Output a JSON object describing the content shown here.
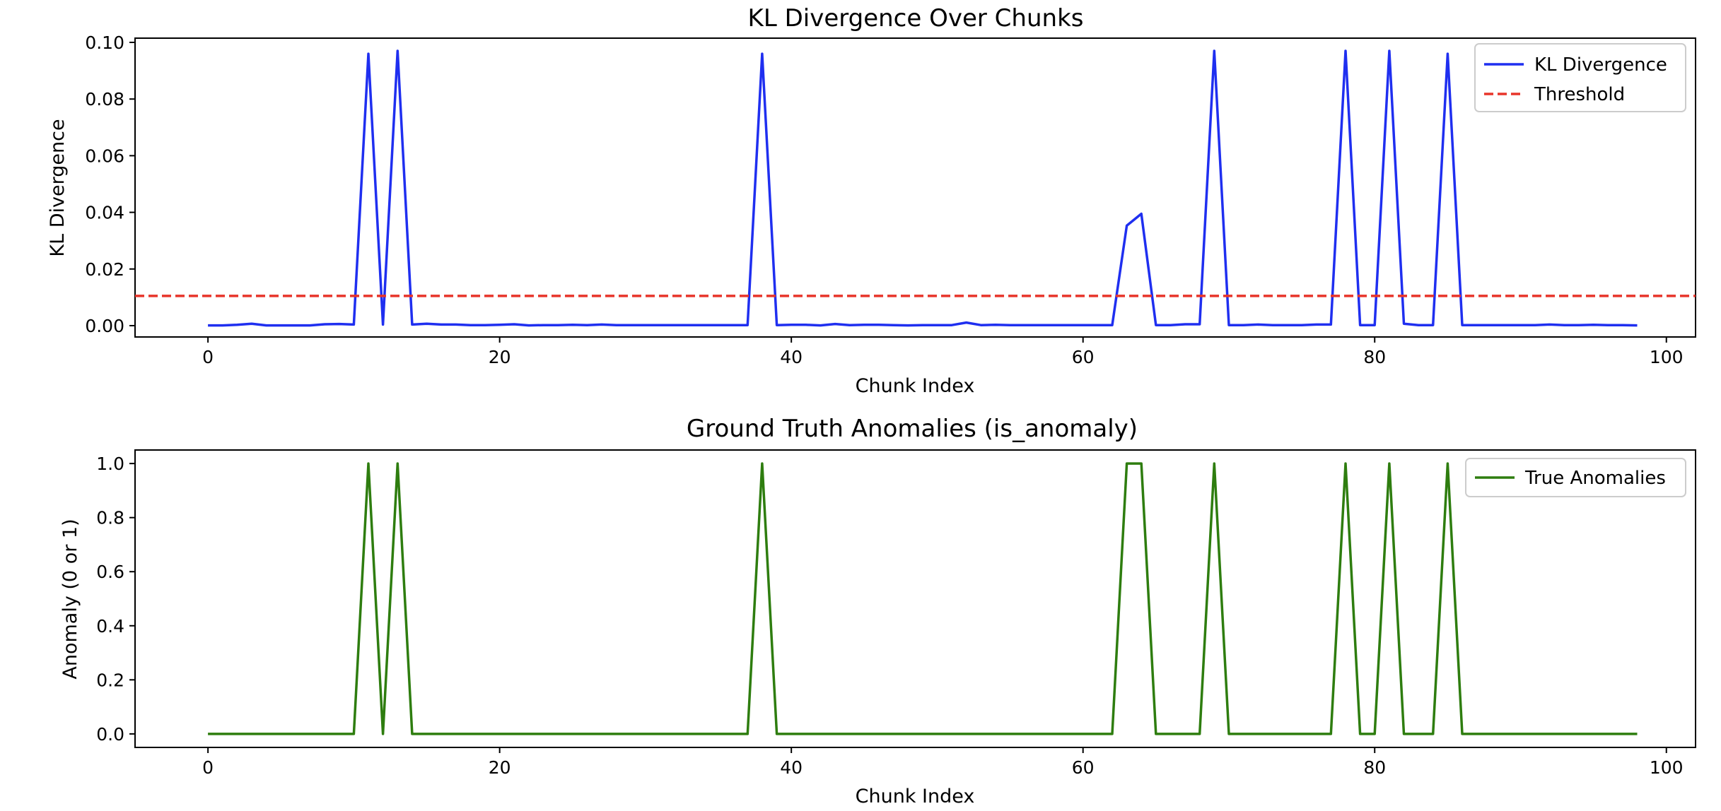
{
  "chart_data": [
    {
      "type": "line",
      "title": "KL Divergence Over Chunks",
      "xlabel": "Chunk Index",
      "ylabel": "KL Divergence",
      "xlim": [
        -5,
        102
      ],
      "ylim": [
        -0.004,
        0.1015
      ],
      "xticks": [
        0,
        20,
        40,
        60,
        80,
        100
      ],
      "xtick_labels": [
        "0",
        "20",
        "40",
        "60",
        "80",
        "100"
      ],
      "yticks": [
        0.0,
        0.02,
        0.04,
        0.06,
        0.08,
        0.1
      ],
      "ytick_labels": [
        "0.00",
        "0.02",
        "0.04",
        "0.06",
        "0.08",
        "0.10"
      ],
      "grid": false,
      "legend_position": "top-right",
      "series": [
        {
          "name": "KL Divergence",
          "color": "#1f2ff0",
          "style": "solid",
          "x": [
            0,
            1,
            2,
            3,
            4,
            5,
            6,
            7,
            8,
            9,
            10,
            11,
            12,
            13,
            14,
            15,
            16,
            17,
            18,
            19,
            20,
            21,
            22,
            23,
            24,
            25,
            26,
            27,
            28,
            29,
            30,
            31,
            32,
            33,
            34,
            35,
            36,
            37,
            38,
            39,
            40,
            41,
            42,
            43,
            44,
            45,
            46,
            47,
            48,
            49,
            50,
            51,
            52,
            53,
            54,
            55,
            56,
            57,
            58,
            59,
            60,
            61,
            62,
            63,
            64,
            65,
            66,
            67,
            68,
            69,
            70,
            71,
            72,
            73,
            74,
            75,
            76,
            77,
            78,
            79,
            80,
            81,
            82,
            83,
            84,
            85,
            86,
            87,
            88,
            89,
            90,
            91,
            92,
            93,
            94,
            95,
            96,
            97,
            98
          ],
          "values": [
            0.0001,
            0.0001,
            0.0003,
            0.0007,
            0.0001,
            0.0001,
            0.0001,
            0.0001,
            0.0005,
            0.0006,
            0.0004,
            0.096,
            0.0004,
            0.097,
            0.0004,
            0.0007,
            0.0004,
            0.0004,
            0.0002,
            0.0002,
            0.0003,
            0.0005,
            0.0001,
            0.0002,
            0.0002,
            0.0003,
            0.0002,
            0.0004,
            0.0002,
            0.0002,
            0.0002,
            0.0002,
            0.0002,
            0.0002,
            0.0002,
            0.0002,
            0.0002,
            0.0002,
            0.096,
            0.0002,
            0.0003,
            0.0003,
            0.0001,
            0.0006,
            0.0002,
            0.0003,
            0.0003,
            0.0002,
            0.0001,
            0.0002,
            0.0002,
            0.0002,
            0.0011,
            0.0002,
            0.0003,
            0.0002,
            0.0002,
            0.0002,
            0.0002,
            0.0002,
            0.0002,
            0.0002,
            0.0002,
            0.0353,
            0.0395,
            0.0002,
            0.0002,
            0.0005,
            0.0005,
            0.097,
            0.0002,
            0.0002,
            0.0004,
            0.0002,
            0.0002,
            0.0002,
            0.0004,
            0.0004,
            0.097,
            0.0002,
            0.0002,
            0.097,
            0.0007,
            0.0002,
            0.0002,
            0.096,
            0.0002,
            0.0002,
            0.0002,
            0.0002,
            0.0002,
            0.0002,
            0.0004,
            0.0002,
            0.0002,
            0.0003,
            0.0002,
            0.0002,
            0.0001
          ]
        },
        {
          "name": "Threshold",
          "color": "#e8352a",
          "style": "dashed",
          "constant_y": 0.0105
        }
      ]
    },
    {
      "type": "line",
      "title": "Ground Truth Anomalies (is_anomaly)",
      "xlabel": "Chunk Index",
      "ylabel": "Anomaly (0 or 1)",
      "xlim": [
        -5,
        102
      ],
      "ylim": [
        -0.05,
        1.05
      ],
      "xticks": [
        0,
        20,
        40,
        60,
        80,
        100
      ],
      "xtick_labels": [
        "0",
        "20",
        "40",
        "60",
        "80",
        "100"
      ],
      "yticks": [
        0.0,
        0.2,
        0.4,
        0.6,
        0.8,
        1.0
      ],
      "ytick_labels": [
        "0.0",
        "0.2",
        "0.4",
        "0.6",
        "0.8",
        "1.0"
      ],
      "grid": false,
      "legend_position": "top-right",
      "series": [
        {
          "name": "True Anomalies",
          "color": "#2e7d0f",
          "style": "solid",
          "x": [
            0,
            1,
            2,
            3,
            4,
            5,
            6,
            7,
            8,
            9,
            10,
            11,
            12,
            13,
            14,
            15,
            16,
            17,
            18,
            19,
            20,
            21,
            22,
            23,
            24,
            25,
            26,
            27,
            28,
            29,
            30,
            31,
            32,
            33,
            34,
            35,
            36,
            37,
            38,
            39,
            40,
            41,
            42,
            43,
            44,
            45,
            46,
            47,
            48,
            49,
            50,
            51,
            52,
            53,
            54,
            55,
            56,
            57,
            58,
            59,
            60,
            61,
            62,
            63,
            64,
            65,
            66,
            67,
            68,
            69,
            70,
            71,
            72,
            73,
            74,
            75,
            76,
            77,
            78,
            79,
            80,
            81,
            82,
            83,
            84,
            85,
            86,
            87,
            88,
            89,
            90,
            91,
            92,
            93,
            94,
            95,
            96,
            97,
            98
          ],
          "values": [
            0,
            0,
            0,
            0,
            0,
            0,
            0,
            0,
            0,
            0,
            0,
            1,
            0,
            1,
            0,
            0,
            0,
            0,
            0,
            0,
            0,
            0,
            0,
            0,
            0,
            0,
            0,
            0,
            0,
            0,
            0,
            0,
            0,
            0,
            0,
            0,
            0,
            0,
            1,
            0,
            0,
            0,
            0,
            0,
            0,
            0,
            0,
            0,
            0,
            0,
            0,
            0,
            0,
            0,
            0,
            0,
            0,
            0,
            0,
            0,
            0,
            0,
            0,
            1,
            1,
            0,
            0,
            0,
            0,
            1,
            0,
            0,
            0,
            0,
            0,
            0,
            0,
            0,
            1,
            0,
            0,
            1,
            0,
            0,
            0,
            1,
            0,
            0,
            0,
            0,
            0,
            0,
            0,
            0,
            0,
            0,
            0,
            0,
            0
          ]
        }
      ]
    }
  ]
}
